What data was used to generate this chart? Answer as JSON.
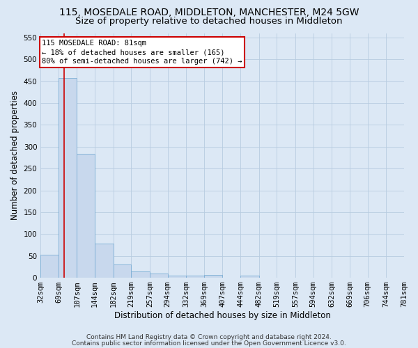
{
  "title": "115, MOSEDALE ROAD, MIDDLETON, MANCHESTER, M24 5GW",
  "subtitle": "Size of property relative to detached houses in Middleton",
  "xlabel": "Distribution of detached houses by size in Middleton",
  "ylabel": "Number of detached properties",
  "bin_labels": [
    "32sqm",
    "69sqm",
    "107sqm",
    "144sqm",
    "182sqm",
    "219sqm",
    "257sqm",
    "294sqm",
    "332sqm",
    "369sqm",
    "407sqm",
    "444sqm",
    "482sqm",
    "519sqm",
    "557sqm",
    "594sqm",
    "632sqm",
    "669sqm",
    "706sqm",
    "744sqm",
    "781sqm"
  ],
  "bar_values": [
    52,
    457,
    283,
    78,
    30,
    15,
    10,
    5,
    5,
    6,
    0,
    5,
    0,
    0,
    0,
    0,
    0,
    0,
    0,
    0
  ],
  "bin_edges": [
    32,
    69,
    107,
    144,
    182,
    219,
    257,
    294,
    332,
    369,
    407,
    444,
    482,
    519,
    557,
    594,
    632,
    669,
    706,
    744,
    781
  ],
  "bar_color": "#c8d8ed",
  "bar_edge_color": "#7aadd4",
  "red_line_x": 81,
  "annotation_line1": "115 MOSEDALE ROAD: 81sqm",
  "annotation_line2": "← 18% of detached houses are smaller (165)",
  "annotation_line3": "80% of semi-detached houses are larger (742) →",
  "annotation_box_color": "#ffffff",
  "annotation_box_edge": "#cc0000",
  "ylim": [
    0,
    560
  ],
  "yticks": [
    0,
    50,
    100,
    150,
    200,
    250,
    300,
    350,
    400,
    450,
    500,
    550
  ],
  "footer_line1": "Contains HM Land Registry data © Crown copyright and database right 2024.",
  "footer_line2": "Contains public sector information licensed under the Open Government Licence v3.0.",
  "bg_color": "#dce8f5",
  "plot_bg_color": "#dce8f5",
  "grid_color": "#b8cce0",
  "title_fontsize": 10,
  "subtitle_fontsize": 9.5,
  "axis_label_fontsize": 8.5,
  "tick_fontsize": 7.5,
  "annotation_fontsize": 7.5,
  "footer_fontsize": 6.5
}
